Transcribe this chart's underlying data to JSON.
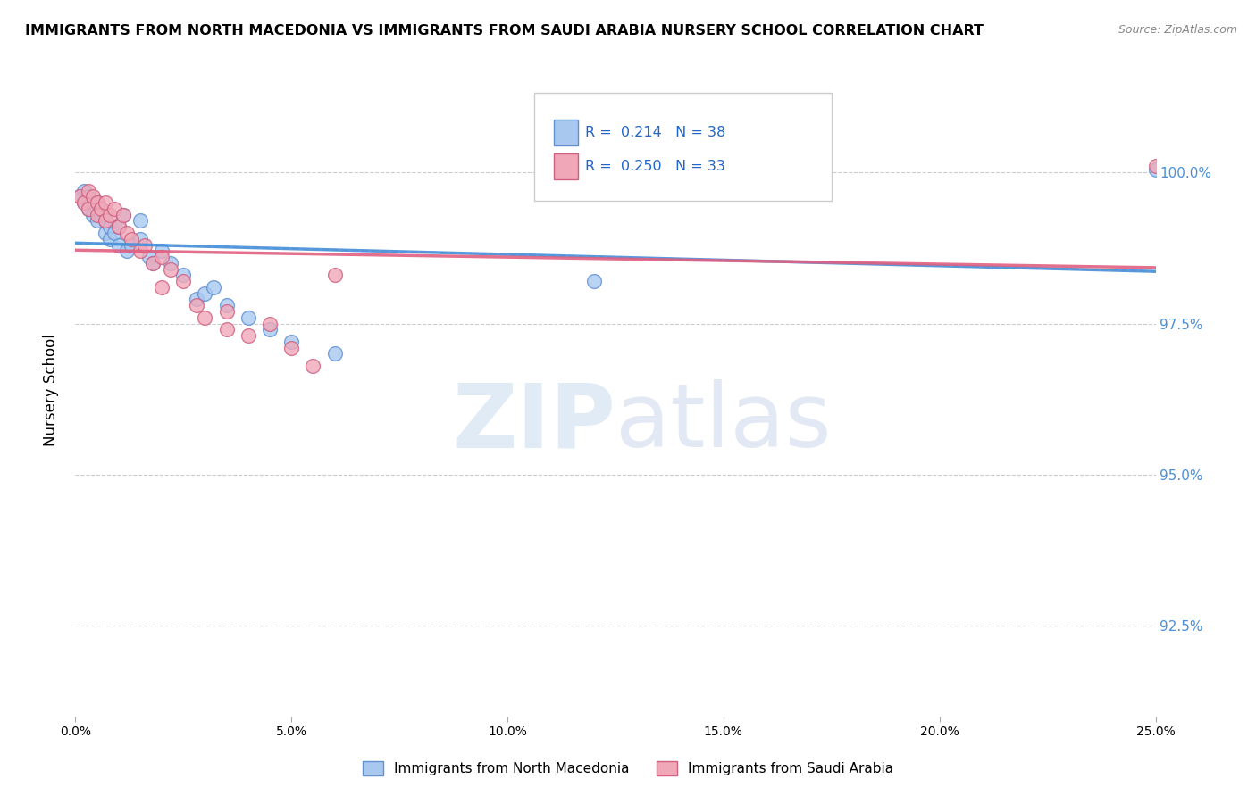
{
  "title": "IMMIGRANTS FROM NORTH MACEDONIA VS IMMIGRANTS FROM SAUDI ARABIA NURSERY SCHOOL CORRELATION CHART",
  "source": "Source: ZipAtlas.com",
  "ylabel": "Nursery School",
  "legend_blue_label": "Immigrants from North Macedonia",
  "legend_pink_label": "Immigrants from Saudi Arabia",
  "R_blue": 0.214,
  "N_blue": 38,
  "R_pink": 0.25,
  "N_pink": 33,
  "blue_color": "#A8C8F0",
  "pink_color": "#F0A8B8",
  "blue_edge": "#6090D0",
  "pink_edge": "#D06080",
  "line_blue": "#4A90D9",
  "line_pink": "#E06080",
  "watermark_zip": "ZIP",
  "watermark_atlas": "atlas",
  "blue_x": [
    0.001,
    0.002,
    0.002,
    0.003,
    0.003,
    0.004,
    0.004,
    0.005,
    0.005,
    0.006,
    0.006,
    0.007,
    0.007,
    0.008,
    0.008,
    0.009,
    0.01,
    0.01,
    0.011,
    0.012,
    0.013,
    0.015,
    0.015,
    0.017,
    0.018,
    0.02,
    0.022,
    0.025,
    0.028,
    0.03,
    0.032,
    0.035,
    0.04,
    0.045,
    0.05,
    0.06,
    0.25,
    0.12
  ],
  "blue_y": [
    99.6,
    99.7,
    99.5,
    99.6,
    99.4,
    99.5,
    99.3,
    99.5,
    99.2,
    99.4,
    99.3,
    99.2,
    99.0,
    99.1,
    98.9,
    99.0,
    98.8,
    99.1,
    99.3,
    98.7,
    98.8,
    98.9,
    99.2,
    98.6,
    98.5,
    98.7,
    98.5,
    98.3,
    97.9,
    98.0,
    98.1,
    97.8,
    97.6,
    97.4,
    97.2,
    97.0,
    100.05,
    98.2
  ],
  "pink_x": [
    0.001,
    0.002,
    0.003,
    0.003,
    0.004,
    0.005,
    0.005,
    0.006,
    0.007,
    0.007,
    0.008,
    0.009,
    0.01,
    0.011,
    0.012,
    0.013,
    0.015,
    0.016,
    0.018,
    0.02,
    0.022,
    0.025,
    0.028,
    0.03,
    0.035,
    0.04,
    0.05,
    0.06,
    0.035,
    0.045,
    0.055,
    0.02,
    0.25
  ],
  "pink_y": [
    99.6,
    99.5,
    99.7,
    99.4,
    99.6,
    99.5,
    99.3,
    99.4,
    99.5,
    99.2,
    99.3,
    99.4,
    99.1,
    99.3,
    99.0,
    98.9,
    98.7,
    98.8,
    98.5,
    98.6,
    98.4,
    98.2,
    97.8,
    97.6,
    97.4,
    97.3,
    97.1,
    98.3,
    97.7,
    97.5,
    96.8,
    98.1,
    100.1
  ],
  "xmin": 0.0,
  "xmax": 0.25,
  "ymin": 91.0,
  "ymax": 101.8,
  "ytick_vals": [
    92.5,
    95.0,
    97.5,
    100.0
  ],
  "xtick_vals": [
    0.0,
    0.05,
    0.1,
    0.15,
    0.2,
    0.25
  ],
  "xtick_labels": [
    "0.0%",
    "5.0%",
    "10.0%",
    "15.0%",
    "20.0%",
    "25.0%"
  ],
  "ytick_labels_right": [
    "92.5%",
    "95.0%",
    "97.5%",
    "100.0%"
  ]
}
